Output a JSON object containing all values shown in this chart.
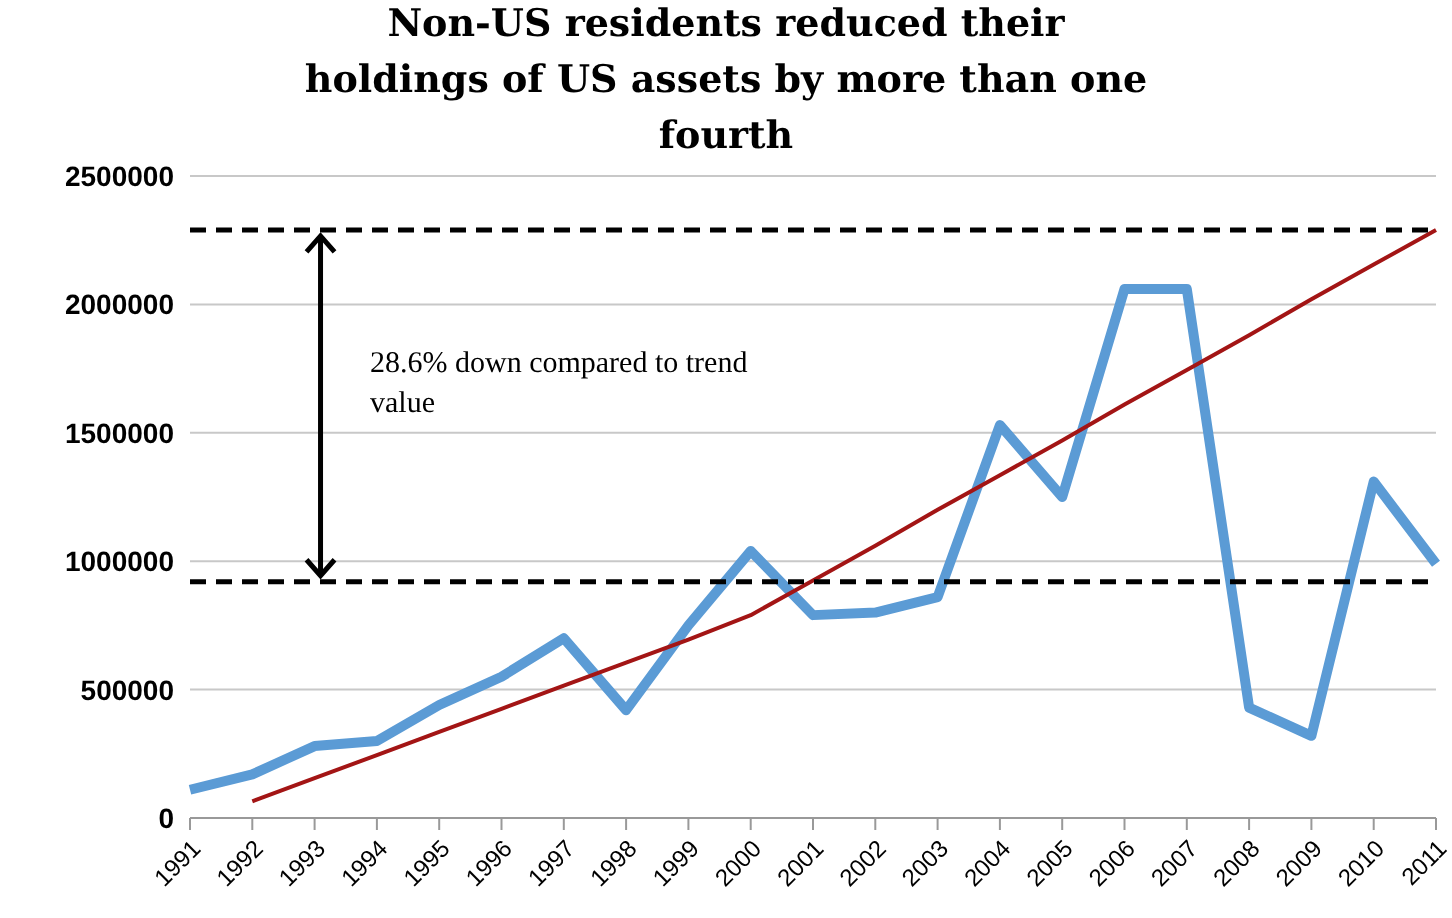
{
  "chart_data": {
    "type": "line",
    "title": "Non-US residents reduced their holdings of US assets by more than one fourth",
    "categories": [
      "1991",
      "1992",
      "1993",
      "1994",
      "1995",
      "1996",
      "1997",
      "1998",
      "1999",
      "2000",
      "2001",
      "2002",
      "2003",
      "2004",
      "2005",
      "2006",
      "2007",
      "2008",
      "2009",
      "2010",
      "2011"
    ],
    "series": [
      {
        "color": "#5b9bd5",
        "values": [
          110000,
          170000,
          280000,
          300000,
          440000,
          550000,
          700000,
          420000,
          750000,
          1040000,
          790000,
          800000,
          860000,
          1530000,
          1250000,
          2060000,
          2060000,
          430000,
          320000,
          1310000,
          990000
        ]
      },
      {
        "color": "#a31515",
        "values": [
          null,
          65000,
          155000,
          245000,
          335000,
          425000,
          515000,
          605000,
          695000,
          790000,
          925000,
          1060000,
          1200000,
          1335000,
          1470000,
          1610000,
          1745000,
          1880000,
          2020000,
          2155000,
          2290000
        ]
      }
    ],
    "ylim": [
      0,
      2500000
    ],
    "yticks": [
      0,
      500000,
      1000000,
      1500000,
      2000000,
      2500000
    ],
    "ref_lines": [
      {
        "axis": "y",
        "value": 2290000,
        "color": "#000000",
        "line_style": "dashed"
      },
      {
        "axis": "y",
        "value": 920000,
        "color": "#000000",
        "line_style": "dashed"
      }
    ],
    "annotations": [
      "28.6% down compared to trend value"
    ],
    "grid": "y",
    "legend": false,
    "marker": "none",
    "line_style": "solid"
  }
}
